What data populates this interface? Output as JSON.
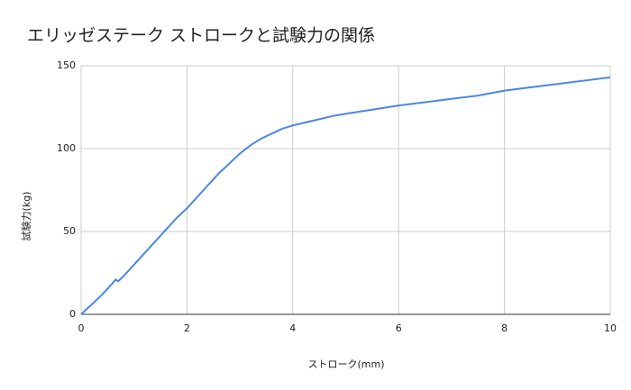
{
  "chart_data": {
    "type": "line",
    "title": "エリッゼステーク ストロークと試験力の関係",
    "x_label": "ストローク(mm)",
    "y_label": "試験力(kg)",
    "x": [
      0,
      0.1,
      0.2,
      0.4,
      0.6,
      0.65,
      0.7,
      0.8,
      1.0,
      1.2,
      1.4,
      1.6,
      1.8,
      2.0,
      2.2,
      2.4,
      2.6,
      2.8,
      3.0,
      3.2,
      3.4,
      3.6,
      3.8,
      4.0,
      4.4,
      4.8,
      5.2,
      5.6,
      6.0,
      6.5,
      7.0,
      7.5,
      8.0,
      8.5,
      9.0,
      9.5,
      10
    ],
    "series": [
      {
        "name": "試験力(kg)",
        "color": "#4a86e8",
        "values": [
          0,
          3,
          6,
          12,
          19,
          21,
          20,
          23,
          30,
          37,
          44,
          51,
          58,
          64,
          71,
          78,
          85,
          91,
          97,
          102,
          106,
          109,
          112,
          114,
          117,
          120,
          122,
          124,
          126,
          128,
          130,
          132,
          135,
          137,
          139,
          141,
          143
        ]
      }
    ],
    "xlim": [
      0,
      10
    ],
    "xticks": [
      0,
      2,
      4,
      6,
      8,
      10
    ],
    "ylim": [
      0,
      150
    ],
    "yticks": [
      0,
      50,
      100,
      150
    ],
    "grid": true
  }
}
